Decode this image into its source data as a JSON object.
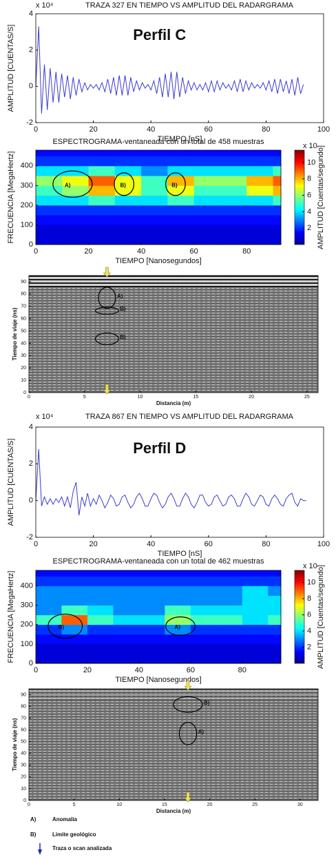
{
  "chart_data": [
    {
      "type": "line",
      "title": "TRAZA 327 EN TIEMPO VS AMPLITUD DEL RADARGRAMA",
      "y_exponent": "x 10⁴",
      "annotation": "Perfil C",
      "xlabel": "TIEMPO [nS]",
      "ylabel": "AMPLITUD [CUENTAS/S]",
      "xlim": [
        0,
        100
      ],
      "xticks": [
        0,
        20,
        40,
        60,
        80,
        100
      ],
      "ylim": [
        -2,
        4
      ],
      "yticks": [
        -2,
        0,
        2,
        4
      ],
      "color": "#3b3bd0",
      "x": [
        0,
        1,
        2,
        3,
        4,
        5,
        6,
        7,
        8,
        9,
        10,
        11,
        12,
        13,
        14,
        15,
        16,
        17,
        18,
        19,
        20,
        21,
        22,
        23,
        24,
        25,
        26,
        27,
        28,
        29,
        30,
        31,
        32,
        33,
        34,
        35,
        36,
        37,
        38,
        39,
        40,
        41,
        42,
        43,
        44,
        45,
        46,
        47,
        48,
        49,
        50,
        51,
        52,
        53,
        54,
        55,
        56,
        57,
        58,
        59,
        60,
        61,
        62,
        63,
        64,
        65,
        66,
        67,
        68,
        69,
        70,
        71,
        72,
        73,
        74,
        75,
        76,
        77,
        78,
        79,
        80,
        81,
        82,
        83,
        84,
        85,
        86,
        87,
        88,
        89,
        90,
        91,
        92,
        93
      ],
      "values": [
        0,
        3.3,
        -1.5,
        1.2,
        -1.3,
        1.0,
        -0.9,
        0.8,
        -0.9,
        0.7,
        -0.6,
        0.6,
        -0.7,
        0.5,
        -0.5,
        0.4,
        -0.3,
        0.2,
        -0.2,
        0.1,
        -0.1,
        0.1,
        -0.2,
        0.2,
        -0.3,
        0.4,
        -0.4,
        0.5,
        -0.5,
        0.6,
        -0.5,
        0.6,
        -0.5,
        0.5,
        -0.3,
        0.3,
        -0.2,
        0.2,
        -0.1,
        0.1,
        -0.2,
        0.3,
        -0.4,
        0.5,
        -0.6,
        0.7,
        -0.6,
        0.8,
        -0.7,
        0.8,
        -0.6,
        0.5,
        -0.4,
        0.3,
        -0.2,
        0.2,
        -0.2,
        0.1,
        -0.2,
        0.2,
        -0.3,
        0.3,
        -0.3,
        0.3,
        -0.2,
        0.2,
        -0.1,
        0.1,
        -0.2,
        0.3,
        -0.3,
        0.4,
        -0.3,
        0.3,
        -0.2,
        0.2,
        -0.1,
        0.1,
        -0.1,
        0.2,
        -0.2,
        0.3,
        -0.3,
        0.4,
        -0.4,
        0.4,
        -0.3,
        0.3,
        -0.4,
        0.4,
        -0.5,
        0.5,
        -0.4,
        0.1
      ]
    },
    {
      "type": "heatmap",
      "title": "ESPECTROGRAMA-ventaneada con un total de 458 muestras",
      "xlabel": "TIEMPO [Nanosegundos]",
      "ylabel": "FRECUENCIA [MegaHertz]",
      "colorbar_label": "AMPLITUD [Cuentas/segundo]",
      "colorbar_exponent": "x 10",
      "xlim": [
        0,
        93
      ],
      "xticks": [
        0,
        20,
        40,
        60,
        80
      ],
      "ylim": [
        0,
        480
      ],
      "yticks": [
        0,
        100,
        200,
        300,
        400
      ],
      "clim": [
        0,
        11.5
      ],
      "cticks": [
        2,
        4,
        6,
        8,
        10
      ],
      "annotations": [
        "A)",
        "B)",
        "B)"
      ],
      "xbins": [
        0,
        10,
        20,
        30,
        40,
        50,
        60,
        70,
        80,
        90,
        93
      ],
      "ybins": [
        0,
        50,
        100,
        150,
        200,
        250,
        300,
        350,
        400,
        450,
        480
      ],
      "z": [
        [
          1,
          1,
          1,
          1,
          1,
          1,
          1,
          1,
          1,
          1
        ],
        [
          1,
          1,
          1,
          1,
          1,
          1,
          1,
          1,
          1,
          1
        ],
        [
          1.5,
          1.5,
          1.5,
          1.5,
          1.5,
          1.5,
          1.5,
          1.5,
          1.5,
          1.5
        ],
        [
          2,
          2,
          2,
          2,
          2,
          2,
          2,
          2,
          2,
          2
        ],
        [
          4,
          4,
          5,
          4,
          4,
          5,
          4,
          4,
          4,
          5
        ],
        [
          5,
          6,
          8,
          7,
          5,
          7,
          5,
          5,
          7,
          8
        ],
        [
          6,
          7,
          9,
          7,
          5,
          8,
          6,
          6,
          8,
          9
        ],
        [
          4,
          4,
          5,
          4,
          3,
          4,
          4,
          4,
          4,
          5
        ],
        [
          2,
          2,
          2,
          2,
          2,
          2,
          2,
          2,
          2,
          2
        ],
        [
          1.5,
          1.5,
          1.5,
          1.5,
          1.5,
          1.5,
          1.5,
          1.5,
          1.5,
          1.5
        ]
      ]
    },
    {
      "type": "radargram",
      "xlabel": "Distancia (m)",
      "ylabel": "Tiempo de viaje (ns)",
      "xlim": [
        0,
        26
      ],
      "xticks": [
        0,
        5,
        10,
        15,
        20,
        25
      ],
      "ylim": [
        0,
        95
      ],
      "yticks": [
        0,
        10,
        20,
        30,
        40,
        50,
        60,
        70,
        80,
        90
      ],
      "annotations": [
        "A)",
        "B)",
        "B)"
      ]
    },
    {
      "type": "line",
      "title": "TRAZA 867 EN TIEMPO VS AMPLITUD DEL RADARGRAMA",
      "y_exponent": "x 10⁴",
      "annotation": "Perfil D",
      "xlabel": "TIEMPO [nS]",
      "ylabel": "AMPLITUD [CUENTAS/S]",
      "xlim": [
        0,
        100
      ],
      "xticks": [
        0,
        20,
        40,
        60,
        80,
        100
      ],
      "ylim": [
        -2,
        4
      ],
      "yticks": [
        -2,
        0,
        2,
        4
      ],
      "color": "#3b3bd0",
      "x": [
        0,
        1,
        2,
        3,
        4,
        5,
        6,
        7,
        8,
        9,
        10,
        11,
        12,
        13,
        14,
        15,
        16,
        17,
        18,
        19,
        20,
        21,
        22,
        23,
        24,
        25,
        26,
        27,
        28,
        29,
        30,
        31,
        32,
        33,
        34,
        35,
        36,
        37,
        38,
        39,
        40,
        41,
        42,
        43,
        44,
        45,
        46,
        47,
        48,
        49,
        50,
        51,
        52,
        53,
        54,
        55,
        56,
        57,
        58,
        59,
        60,
        61,
        62,
        63,
        64,
        65,
        66,
        67,
        68,
        69,
        70,
        71,
        72,
        73,
        74,
        75,
        76,
        77,
        78,
        79,
        80,
        81,
        82,
        83,
        84,
        85,
        86,
        87,
        88,
        89,
        90,
        91,
        92,
        93,
        94
      ],
      "values": [
        0,
        2.8,
        -0.3,
        0.2,
        -0.2,
        0.1,
        -0.2,
        0.1,
        -0.1,
        0.2,
        -0.3,
        0.2,
        -0.4,
        0.5,
        1.0,
        -0.8,
        0.2,
        -0.3,
        0.4,
        -0.3,
        0.1,
        -0.2,
        0.3,
        0,
        -0.4,
        -0.1,
        0.3,
        0.1,
        -0.3,
        -0.2,
        0.2,
        0.3,
        -0.1,
        -0.4,
        -0.2,
        0.2,
        0.4,
        0.1,
        -0.3,
        -0.3,
        0.1,
        0.4,
        0.3,
        -0.1,
        -0.4,
        -0.2,
        0.2,
        0.4,
        0.1,
        -0.3,
        -0.3,
        0.1,
        0.4,
        0.2,
        -0.2,
        -0.4,
        -0.1,
        0.3,
        0.3,
        -0.1,
        -0.3,
        -0.2,
        0.2,
        0.3,
        0,
        -0.3,
        -0.2,
        0.2,
        0.3,
        0.1,
        -0.3,
        -0.3,
        0.1,
        0.4,
        0.2,
        -0.2,
        -0.3,
        0,
        0.3,
        0.2,
        -0.2,
        -0.3,
        0.1,
        0.3,
        0.1,
        -0.2,
        -0.3,
        0.1,
        0.3,
        0.4,
        -0.1,
        -0.3,
        0.1,
        0,
        0
      ]
    },
    {
      "type": "heatmap",
      "title": "ESPECTROGRAMA-ventaneada con un total de 462 muestras",
      "xlabel": "TIEMPO [Nanosegundos]",
      "ylabel": "FRECUENCIA [MegaHertz]",
      "colorbar_label": "AMPLITUD [Cuentas/segundo]",
      "colorbar_exponent": "x 10",
      "xlim": [
        0,
        95
      ],
      "xticks": [
        0,
        20,
        40,
        60,
        80
      ],
      "ylim": [
        0,
        480
      ],
      "yticks": [
        0,
        100,
        200,
        300,
        400
      ],
      "clim": [
        0,
        11.5
      ],
      "cticks": [
        2,
        4,
        6,
        8,
        10
      ],
      "annotations": [
        "B)",
        "A)"
      ],
      "xbins": [
        0,
        10,
        20,
        30,
        40,
        50,
        60,
        70,
        80,
        90,
        95
      ],
      "ybins": [
        0,
        50,
        100,
        150,
        200,
        250,
        300,
        350,
        400,
        450,
        480
      ],
      "z": [
        [
          1,
          1,
          1,
          1,
          1,
          1,
          1,
          1,
          1,
          1
        ],
        [
          1,
          1,
          1,
          1,
          1,
          1,
          1,
          1,
          1,
          1
        ],
        [
          1.5,
          1.5,
          1.5,
          1.5,
          1.5,
          1.5,
          1.5,
          1.5,
          1.5,
          1.5
        ],
        [
          2,
          3,
          2,
          2,
          2,
          3,
          2,
          2,
          2,
          2
        ],
        [
          5,
          9,
          5,
          4,
          4,
          6,
          5,
          5,
          4,
          5
        ],
        [
          3,
          5,
          4,
          3,
          3,
          5,
          4,
          4,
          4,
          4
        ],
        [
          3,
          3,
          3,
          3,
          3,
          3,
          3,
          3,
          4,
          4
        ],
        [
          3,
          3,
          3,
          3,
          3,
          3,
          3,
          3,
          4,
          3
        ],
        [
          2,
          2,
          2,
          2,
          2,
          2,
          2,
          2,
          2,
          2
        ],
        [
          1.5,
          1.5,
          1.5,
          1.5,
          1.5,
          1.5,
          1.5,
          1.5,
          1.5,
          1.5
        ]
      ]
    },
    {
      "type": "radargram",
      "xlabel": "Distancia (m)",
      "ylabel": "Tiempo de viaje (ns)",
      "xlim": [
        0,
        32
      ],
      "xticks": [
        0,
        5,
        10,
        15,
        20,
        25,
        30
      ],
      "ylim": [
        0,
        95
      ],
      "yticks": [
        0,
        10,
        20,
        30,
        40,
        50,
        60,
        70,
        80,
        90
      ],
      "annotations": [
        "B)",
        "A)"
      ]
    }
  ],
  "legend": [
    {
      "key": "A)",
      "text": "Anomalia"
    },
    {
      "key": "B)",
      "text": "Limite geológico"
    },
    {
      "text": "Traza o scan analizada"
    }
  ]
}
